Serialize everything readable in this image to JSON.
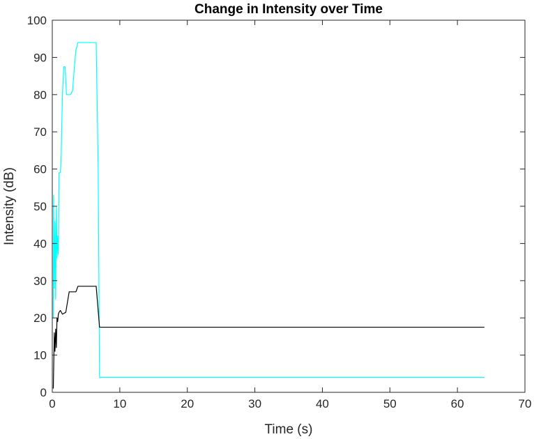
{
  "chart_data": {
    "type": "line",
    "title": "Change in Intensity over Time",
    "xlabel": "Time (s)",
    "ylabel": "Intensity (dB)",
    "xlim": [
      0,
      70
    ],
    "ylim": [
      0,
      100
    ],
    "xticks": [
      0,
      10,
      20,
      30,
      40,
      50,
      60,
      70
    ],
    "yticks": [
      0,
      10,
      20,
      30,
      40,
      50,
      60,
      70,
      80,
      90,
      100
    ],
    "grid": false,
    "box": true,
    "series": [
      {
        "color": "#00ffff",
        "x": [
          0.15,
          0.2,
          0.3,
          0.4,
          0.5,
          0.6,
          0.7,
          0.8,
          0.9,
          1.0,
          1.1,
          1.2,
          1.3,
          1.5,
          1.7,
          1.9,
          2.1,
          2.3,
          2.5,
          2.7,
          3.0,
          3.3,
          3.5,
          3.8,
          5.0,
          6.0,
          6.5,
          6.8,
          7.0,
          64.0
        ],
        "y": [
          20,
          53,
          28,
          46,
          25,
          50,
          36,
          42,
          37,
          59,
          59,
          59,
          62,
          80,
          87.5,
          87.5,
          80,
          80,
          80,
          80,
          81,
          88,
          92,
          94,
          94,
          94,
          94,
          60,
          4,
          4
        ]
      },
      {
        "color": "#000000",
        "x": [
          0.15,
          0.3,
          0.4,
          0.5,
          0.6,
          0.7,
          0.8,
          0.9,
          1.0,
          1.2,
          1.5,
          2.0,
          2.5,
          2.7,
          3.0,
          3.5,
          3.8,
          4.2,
          5.0,
          6.0,
          6.5,
          7.0,
          64.0
        ],
        "y": [
          1,
          16,
          11,
          17,
          12,
          20,
          19,
          21,
          21.5,
          22,
          21,
          21.5,
          27,
          27,
          27,
          27,
          28.5,
          28.5,
          28.5,
          28.5,
          28.5,
          17.5,
          17.5
        ]
      }
    ]
  }
}
